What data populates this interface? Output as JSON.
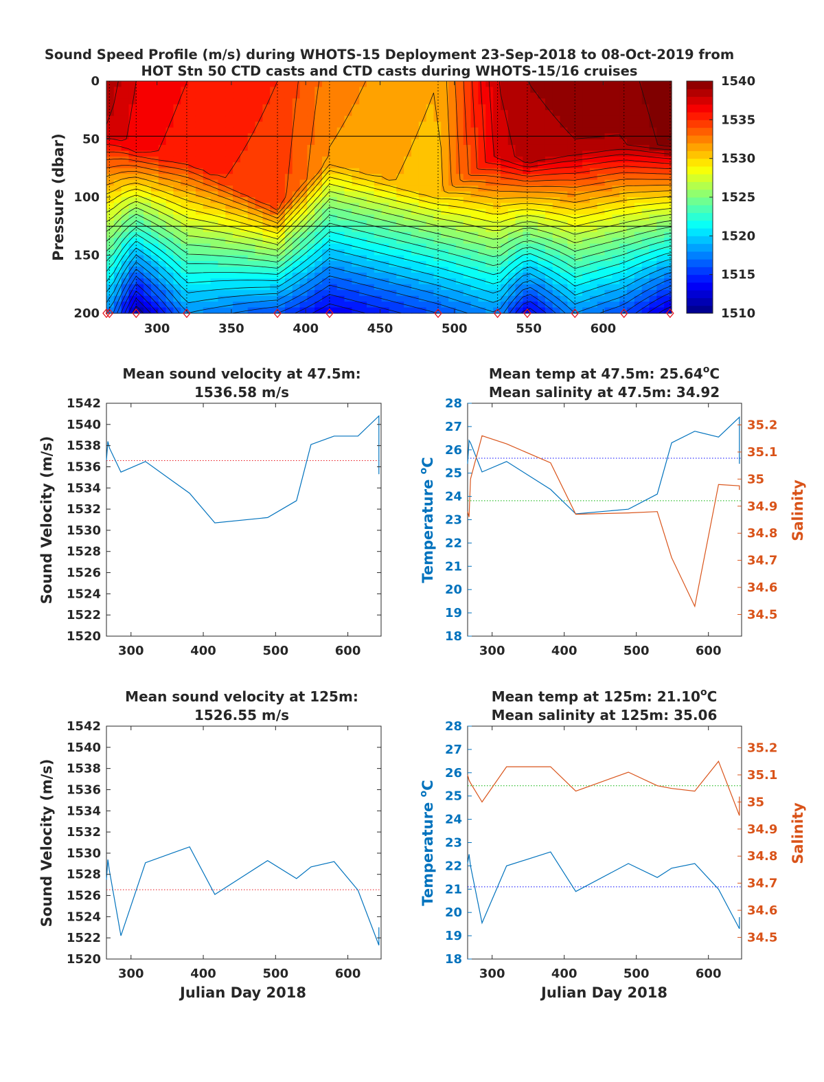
{
  "figure": {
    "title_line1": "Sound Speed Profile (m/s) during WHOTS-15 Deployment 23-Sep-2018 to 08-Oct-2019 from",
    "title_line2": "HOT Stn 50 CTD casts and CTD casts during WHOTS-15/16 cruises"
  },
  "chart_data": [
    {
      "type": "heatmap",
      "id": "profile",
      "ylabel": "Pressure (dbar)",
      "xlim": [
        266,
        646
      ],
      "ylim": [
        0,
        200
      ],
      "y_reversed": true,
      "xticks": [
        300,
        350,
        400,
        450,
        500,
        550,
        600
      ],
      "yticks": [
        0,
        50,
        100,
        150,
        200
      ],
      "colorbar": {
        "min": 1510,
        "max": 1540,
        "ticks": [
          1510,
          1515,
          1520,
          1525,
          1530,
          1535,
          1540
        ],
        "colormap": "jet"
      },
      "cast_days": [
        266,
        268,
        286,
        320,
        381,
        416,
        489,
        529,
        549,
        581,
        614,
        645
      ],
      "reference_depths": [
        47.5,
        125
      ],
      "surface_speed": [
        1538.5,
        1538.5,
        1537,
        1536,
        1535,
        1532.5,
        1531,
        1538,
        1539,
        1539.5,
        1539.5,
        1541
      ],
      "mixed_layer_depth": [
        45,
        45,
        60,
        70,
        110,
        68,
        100,
        65,
        70,
        60,
        55,
        55
      ],
      "deep_speed_200": [
        1518,
        1518,
        1511,
        1518,
        1516,
        1513,
        1516,
        1518,
        1513,
        1518,
        1516,
        1512
      ],
      "marker_color": "#e8141c"
    },
    {
      "type": "line",
      "id": "sv47",
      "title_line1": "Mean sound velocity at 47.5m:",
      "title_line2": "1536.58 m/s",
      "ylabel": "Sound Velocity (m/s)",
      "xlim": [
        266,
        646
      ],
      "ylim": [
        1520,
        1542
      ],
      "xticks": [
        300,
        400,
        500,
        600
      ],
      "yticks": [
        1520,
        1522,
        1524,
        1526,
        1528,
        1530,
        1532,
        1534,
        1536,
        1538,
        1540,
        1542
      ],
      "mean": 1536.58,
      "x": [
        266,
        268,
        270,
        286,
        320,
        381,
        416,
        489,
        529,
        549,
        581,
        614,
        643,
        643
      ],
      "values": [
        1536.6,
        1538.4,
        1537.8,
        1535.5,
        1536.5,
        1533.5,
        1530.7,
        1531.2,
        1532.8,
        1538.1,
        1538.9,
        1538.9,
        1540.8,
        1535.3
      ],
      "color": "#0072bd",
      "mean_color": "#e8141c"
    },
    {
      "type": "line",
      "id": "ts47",
      "title_line1": "Mean temp at 47.5m:  25.64",
      "title_deg": "o",
      "title_line1_end": "C",
      "title_line2": "Mean salinity at 47.5m:  34.92",
      "ylabel": "Temperature ",
      "ylabel_deg": "o",
      "ylabel_end": "C",
      "y2label": "Salinity",
      "xlim": [
        266,
        646
      ],
      "ylim": [
        18,
        28
      ],
      "y2lim": [
        34.42,
        35.28
      ],
      "xticks": [
        300,
        400,
        500,
        600
      ],
      "yticks": [
        18,
        19,
        20,
        21,
        22,
        23,
        24,
        25,
        26,
        27,
        28
      ],
      "y2ticks": [
        34.5,
        34.6,
        34.7,
        34.8,
        34.9,
        35,
        35.1,
        35.2
      ],
      "y2ticklabels": [
        "34.5",
        "34.6",
        "34.7",
        "34.8",
        "34.9",
        "35",
        "35.1",
        "35.2"
      ],
      "temp_mean": 25.64,
      "sal_mean": 34.92,
      "series": [
        {
          "name": "Temperature",
          "x": [
            266,
            268,
            270,
            286,
            320,
            381,
            416,
            489,
            529,
            549,
            581,
            614,
            643,
            643
          ],
          "values": [
            25.4,
            26.4,
            26.3,
            25.05,
            25.5,
            24.3,
            23.25,
            23.45,
            24.1,
            26.3,
            26.8,
            26.55,
            27.4,
            25.4
          ]
        },
        {
          "name": "Salinity",
          "x": [
            266,
            268,
            270,
            286,
            320,
            381,
            416,
            489,
            529,
            549,
            581,
            614,
            643,
            643
          ],
          "values": [
            34.88,
            34.86,
            35.0,
            35.16,
            35.13,
            35.06,
            34.87,
            34.875,
            34.88,
            34.71,
            34.53,
            34.98,
            34.975,
            34.96
          ]
        }
      ],
      "temp_color": "#0072bd",
      "sal_color": "#d95319",
      "temp_mean_color": "#0000ff",
      "sal_mean_color": "#00b000"
    },
    {
      "type": "line",
      "id": "sv125",
      "title_line1": "Mean sound velocity at 125m:",
      "title_line2": "1526.55 m/s",
      "ylabel": "Sound Velocity (m/s)",
      "xlabel": "Julian Day 2018",
      "xlim": [
        266,
        646
      ],
      "ylim": [
        1520,
        1542
      ],
      "xticks": [
        300,
        400,
        500,
        600
      ],
      "yticks": [
        1520,
        1522,
        1524,
        1526,
        1528,
        1530,
        1532,
        1534,
        1536,
        1538,
        1540,
        1542
      ],
      "mean": 1526.55,
      "x": [
        266,
        268,
        270,
        286,
        320,
        381,
        416,
        489,
        529,
        549,
        581,
        614,
        643,
        643
      ],
      "values": [
        1527.5,
        1529.4,
        1528.4,
        1522.2,
        1529.1,
        1530.6,
        1526.1,
        1529.3,
        1527.6,
        1528.7,
        1529.2,
        1526.5,
        1521.3,
        1523.0
      ],
      "color": "#0072bd",
      "mean_color": "#e8141c"
    },
    {
      "type": "line",
      "id": "ts125",
      "title_line1": "Mean temp at 125m:  21.10",
      "title_deg": "o",
      "title_line1_end": "C",
      "title_line2": "Mean salinity at 125m:  35.06",
      "ylabel": "Temperature ",
      "ylabel_deg": "o",
      "ylabel_end": "C",
      "y2label": "Salinity",
      "xlabel": "Julian Day 2018",
      "xlim": [
        266,
        646
      ],
      "ylim": [
        18,
        28
      ],
      "y2lim": [
        34.42,
        35.28
      ],
      "xticks": [
        300,
        400,
        500,
        600
      ],
      "yticks": [
        18,
        19,
        20,
        21,
        22,
        23,
        24,
        25,
        26,
        27,
        28
      ],
      "y2ticks": [
        34.5,
        34.6,
        34.7,
        34.8,
        34.9,
        35,
        35.1,
        35.2
      ],
      "y2ticklabels": [
        "34.5",
        "34.6",
        "34.7",
        "34.8",
        "34.9",
        "35",
        "35.1",
        "35.2"
      ],
      "temp_mean": 21.1,
      "sal_mean": 35.06,
      "series": [
        {
          "name": "Temperature",
          "x": [
            266,
            268,
            270,
            286,
            320,
            381,
            416,
            489,
            529,
            549,
            581,
            614,
            643,
            643
          ],
          "values": [
            22.1,
            22.5,
            22.0,
            19.55,
            22.0,
            22.6,
            20.9,
            22.1,
            21.5,
            21.9,
            22.1,
            21.0,
            19.3,
            19.8
          ]
        },
        {
          "name": "Salinity",
          "x": [
            266,
            268,
            270,
            286,
            320,
            381,
            416,
            489,
            529,
            549,
            581,
            614,
            643,
            643
          ],
          "values": [
            35.1,
            35.08,
            35.07,
            35.0,
            35.13,
            35.13,
            35.04,
            35.11,
            35.06,
            35.05,
            35.04,
            35.15,
            34.95,
            35.02
          ]
        }
      ],
      "temp_color": "#0072bd",
      "sal_color": "#d95319",
      "temp_mean_color": "#0000ff",
      "sal_mean_color": "#00b000"
    }
  ]
}
